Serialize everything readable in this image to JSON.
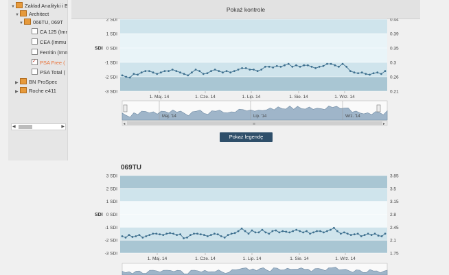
{
  "tree": {
    "items": [
      {
        "label": "Zakład Analityki i B",
        "toggle": "▼",
        "icon": "folder-icon"
      },
      {
        "label": "Architect",
        "toggle": "▼",
        "icon": "folder-icon"
      },
      {
        "label": "066TU, 069T",
        "toggle": "▼",
        "icon": "folder-icon"
      },
      {
        "label": "CA 125 (Imm",
        "checked": false
      },
      {
        "label": "CEA (Immu",
        "checked": false
      },
      {
        "label": "Ferritin (Imm",
        "checked": false
      },
      {
        "label": "PSA Free (",
        "checked": true
      },
      {
        "label": "PSA Total (",
        "checked": false
      },
      {
        "label": "BN ProSpec",
        "toggle": "▶"
      },
      {
        "label": "Roche e411",
        "toggle": "▶"
      }
    ]
  },
  "header": {
    "title": "Pokaż kontrole"
  },
  "legend_button": "Pokaż legendę",
  "chart_data": [
    {
      "type": "line",
      "title": "",
      "y_left_label": "SDI",
      "y_left_ticks": [
        "2 SDI",
        "1 SDI",
        "0 SDI",
        "-1 SDI",
        "-2 SDI",
        "-3 SDI"
      ],
      "y_right_ticks": [
        "0.44",
        "0.39",
        "0.35",
        "0.3",
        "0.26",
        "0.21"
      ],
      "x_ticks": [
        "1. Maj. 14",
        "1. Cze. 14",
        "1. Lip. 14",
        "1. Sie. 14",
        "1. Wrz. 14"
      ],
      "ylim": [
        -3,
        2
      ],
      "values": [
        -1.9,
        -2.0,
        -2.05,
        -1.8,
        -1.85,
        -1.7,
        -1.6,
        -1.6,
        -1.7,
        -1.8,
        -1.7,
        -1.6,
        -1.6,
        -1.5,
        -1.6,
        -1.7,
        -1.8,
        -1.9,
        -1.7,
        -1.5,
        -1.6,
        -1.8,
        -1.75,
        -1.6,
        -1.5,
        -1.6,
        -1.7,
        -1.6,
        -1.7,
        -1.6,
        -1.5,
        -1.4,
        -1.4,
        -1.5,
        -1.5,
        -1.6,
        -1.5,
        -1.3,
        -1.3,
        -1.35,
        -1.25,
        -1.3,
        -1.2,
        -1.1,
        -1.3,
        -1.2,
        -1.3,
        -1.2,
        -1.2,
        -1.3,
        -1.4,
        -1.3,
        -1.25,
        -1.1,
        -1.1,
        -1.2,
        -1.3,
        -1.1,
        -1.3,
        -1.6,
        -1.7,
        -1.75,
        -1.7,
        -1.8,
        -1.85,
        -1.75,
        -1.7,
        -1.8,
        -1.6
      ],
      "navigator_labels": [
        "Maj. '14",
        "Lip. '14",
        "Wrz. '14"
      ]
    },
    {
      "type": "line",
      "title": "069TU",
      "y_left_label": "SDI",
      "y_left_ticks": [
        "3 SDI",
        "2 SDI",
        "1 SDI",
        "0 SDI",
        "-1 SDI",
        "-2 SDI",
        "-3 SDI"
      ],
      "y_right_ticks": [
        "3.85",
        "3.5",
        "3.15",
        "2.8",
        "2.45",
        "2.1",
        "1.75"
      ],
      "x_ticks": [
        "1. Maj. 14",
        "1. Cze. 14",
        "1. Lip. 14",
        "1. Sie. 14",
        "1. Wrz. 14"
      ],
      "ylim": [
        -3,
        3
      ],
      "values": [
        -1.7,
        -1.8,
        -1.6,
        -1.75,
        -1.7,
        -1.6,
        -1.8,
        -1.7,
        -1.6,
        -1.5,
        -1.5,
        -1.55,
        -1.6,
        -1.5,
        -1.45,
        -1.5,
        -1.6,
        -1.55,
        -1.85,
        -1.8,
        -1.6,
        -1.5,
        -1.5,
        -1.55,
        -1.6,
        -1.7,
        -1.6,
        -1.5,
        -1.55,
        -1.7,
        -1.8,
        -1.6,
        -1.5,
        -1.45,
        -1.3,
        -1.1,
        -1.3,
        -1.5,
        -1.25,
        -1.4,
        -1.4,
        -1.2,
        -1.4,
        -1.5,
        -1.3,
        -1.25,
        -1.4,
        -1.3,
        -1.35,
        -1.4,
        -1.3,
        -1.2,
        -1.3,
        -1.4,
        -1.3,
        -1.5,
        -1.4,
        -1.3,
        -1.3,
        -1.4,
        -1.3,
        -1.2,
        -1.05,
        -1.3,
        -1.5,
        -1.4,
        -1.5,
        -1.6,
        -1.55,
        -1.5,
        -1.7,
        -1.6,
        -1.5,
        -1.6,
        -1.5,
        -1.65,
        -1.7,
        -1.5
      ]
    }
  ],
  "colors": {
    "band_dark": "#a9c6d3",
    "band_mid": "#cfe4ec",
    "band_light": "#e9f4f8",
    "line": "#3d6f8e",
    "button": "#2f4f6a",
    "highlight": "#e8733b"
  }
}
